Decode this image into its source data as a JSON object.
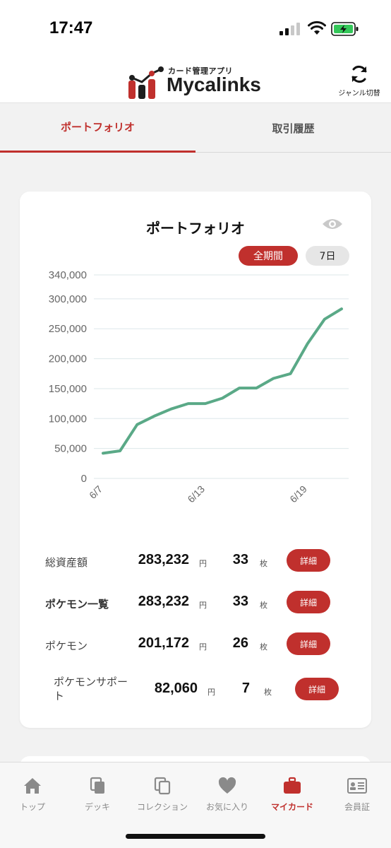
{
  "status_bar": {
    "time": "17:47"
  },
  "header": {
    "logo_sub": "カード管理アプリ",
    "logo_name": "Mycalinks",
    "genre_switch_label": "ジャンル切替"
  },
  "tabs": [
    {
      "label": "ポートフォリオ",
      "active": true
    },
    {
      "label": "取引履歴",
      "active": false
    }
  ],
  "portfolio": {
    "title": "ポートフォリオ",
    "range_all": "全期間",
    "range_7d": "7日"
  },
  "chart_data": {
    "type": "line",
    "title": "",
    "xlabel": "",
    "ylabel": "",
    "ylim": [
      0,
      340000
    ],
    "yticks": [
      0,
      50000,
      100000,
      150000,
      200000,
      250000,
      300000,
      340000
    ],
    "ytick_labels": [
      "0",
      "50,000",
      "100,000",
      "150,000",
      "200,000",
      "250,000",
      "300,000",
      "340,000"
    ],
    "x_tick_labels": [
      "6/7",
      "6/13",
      "6/19"
    ],
    "x": [
      "6/7",
      "6/8",
      "6/9",
      "6/10",
      "6/11",
      "6/12",
      "6/13",
      "6/14",
      "6/15",
      "6/16",
      "6/17",
      "6/18",
      "6/19",
      "6/20",
      "6/21"
    ],
    "series": [
      {
        "values": [
          42000,
          46000,
          90000,
          104000,
          116000,
          125000,
          125000,
          134000,
          151000,
          151000,
          167000,
          175000,
          225000,
          266000,
          283232
        ]
      }
    ],
    "line_color": "#5aa987",
    "grid": true
  },
  "stats": [
    {
      "label": "総資産額",
      "value": "283,232",
      "unit": "円",
      "count": "33",
      "count_unit": "枚",
      "button": "詳細"
    },
    {
      "label": "ポケモン一覧",
      "value": "283,232",
      "unit": "円",
      "count": "33",
      "count_unit": "枚",
      "button": "詳細"
    },
    {
      "label": "ポケモン",
      "value": "201,172",
      "unit": "円",
      "count": "26",
      "count_unit": "枚",
      "button": "詳細"
    },
    {
      "label": "ポケモンサポート",
      "value": "82,060",
      "unit": "円",
      "count": "7",
      "count_unit": "枚",
      "button": "詳細"
    }
  ],
  "bottom_nav": [
    {
      "label": "トップ",
      "icon": "home-icon",
      "active": false
    },
    {
      "label": "デッキ",
      "icon": "deck-icon",
      "active": false
    },
    {
      "label": "コレクション",
      "icon": "collection-icon",
      "active": false
    },
    {
      "label": "お気に入り",
      "icon": "heart-icon",
      "active": false
    },
    {
      "label": "マイカード",
      "icon": "briefcase-icon",
      "active": true
    },
    {
      "label": "会員証",
      "icon": "member-card-icon",
      "active": false
    }
  ],
  "colors": {
    "accent": "#c0302d",
    "line": "#5aa987",
    "grid": "#dde7ea"
  }
}
